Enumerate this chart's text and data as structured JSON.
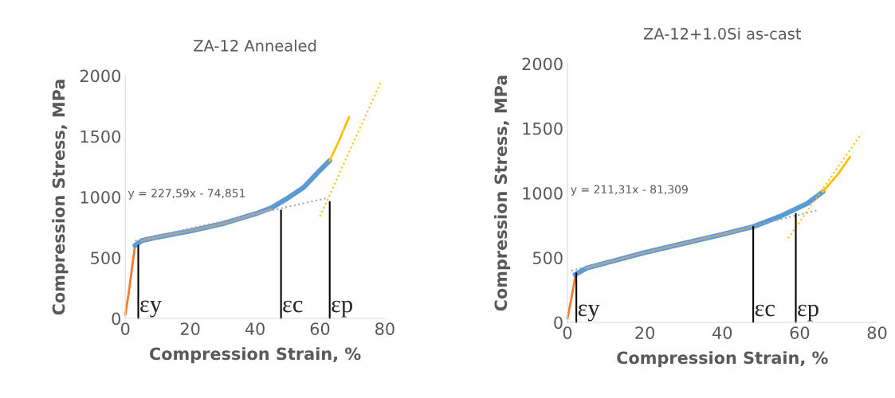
{
  "chart_data": [
    {
      "type": "line",
      "title": "ZA-12 Annealed",
      "xlabel": "Compression Strain, %",
      "ylabel": "Compression Stress, MPa",
      "xlim": [
        0,
        80
      ],
      "ylim": [
        0,
        2000
      ],
      "xticks": [
        0,
        20,
        40,
        60,
        80
      ],
      "yticks": [
        0,
        500,
        1000,
        1500,
        2000
      ],
      "grid": false,
      "legend": false,
      "series": [
        {
          "color": "#ed7d31",
          "x": [
            0,
            1,
            2,
            3
          ],
          "values": [
            30,
            200,
            400,
            600
          ]
        },
        {
          "color": "#5b9bd5",
          "x": [
            3,
            5,
            10,
            20,
            30,
            40,
            45,
            50,
            55,
            60,
            63
          ],
          "values": [
            600,
            640,
            670,
            720,
            780,
            860,
            910,
            990,
            1080,
            1220,
            1300
          ]
        },
        {
          "color": "#a5a5a5",
          "x": [
            5,
            10,
            20,
            30,
            40,
            45
          ],
          "values": [
            640,
            670,
            720,
            780,
            860,
            900
          ]
        },
        {
          "color": "#a5a5a5",
          "line_style": "dotted",
          "x": [
            3,
            62
          ],
          "values": [
            640,
            990
          ]
        },
        {
          "color": "#ffc000",
          "x": [
            63,
            66,
            69
          ],
          "values": [
            1300,
            1470,
            1660
          ]
        },
        {
          "color": "#ffc000",
          "line_style": "dotted",
          "x": [
            60,
            79
          ],
          "values": [
            840,
            1960
          ]
        },
        {
          "color": "#000000",
          "x": [
            4,
            4
          ],
          "values": [
            0,
            600
          ]
        },
        {
          "color": "#000000",
          "x": [
            48,
            48
          ],
          "values": [
            0,
            890
          ]
        },
        {
          "color": "#000000",
          "x": [
            63,
            63
          ],
          "values": [
            0,
            960
          ]
        }
      ],
      "annotations": [
        "y = 227,59x - 74,851",
        {
          "text": "εy",
          "x": 4,
          "y": 0
        },
        {
          "text": "εc",
          "x": 48,
          "y": 0
        },
        {
          "text": "εp",
          "x": 63,
          "y": 0
        }
      ]
    },
    {
      "type": "line",
      "title": "ZA-12+1.0Si as-cast",
      "xlabel": "Compression Strain, %",
      "ylabel": "Compression Stress, MPa",
      "xlim": [
        0,
        80
      ],
      "ylim": [
        0,
        2000
      ],
      "xticks": [
        0,
        20,
        40,
        60,
        80
      ],
      "yticks": [
        0,
        500,
        1000,
        1500,
        2000
      ],
      "grid": false,
      "legend": false,
      "series": [
        {
          "color": "#ed7d31",
          "x": [
            0,
            1,
            2
          ],
          "values": [
            30,
            180,
            350
          ]
        },
        {
          "color": "#5b9bd5",
          "x": [
            2,
            5,
            10,
            20,
            30,
            40,
            48,
            55,
            62,
            66
          ],
          "values": [
            370,
            420,
            460,
            540,
            610,
            680,
            740,
            820,
            920,
            1010
          ]
        },
        {
          "color": "#a5a5a5",
          "x": [
            5,
            10,
            20,
            30,
            40,
            48
          ],
          "values": [
            420,
            460,
            540,
            610,
            680,
            740
          ]
        },
        {
          "color": "#a5a5a5",
          "line_style": "dotted",
          "x": [
            1,
            65
          ],
          "values": [
            400,
            870
          ]
        },
        {
          "color": "#ffc000",
          "x": [
            66,
            70,
            73
          ],
          "values": [
            1010,
            1150,
            1280
          ]
        },
        {
          "color": "#ffc000",
          "line_style": "dotted",
          "x": [
            57,
            76
          ],
          "values": [
            650,
            1460
          ]
        },
        {
          "color": "#000000",
          "x": [
            2.3,
            2.3
          ],
          "values": [
            0,
            380
          ]
        },
        {
          "color": "#000000",
          "x": [
            48,
            48
          ],
          "values": [
            0,
            740
          ]
        },
        {
          "color": "#000000",
          "x": [
            59,
            59
          ],
          "values": [
            0,
            840
          ]
        }
      ],
      "annotations": [
        "y = 211,31x - 81,309",
        {
          "text": "εy",
          "x": 2.3,
          "y": 0
        },
        {
          "text": "εc",
          "x": 48,
          "y": 0
        },
        {
          "text": "εp",
          "x": 59,
          "y": 0
        }
      ]
    }
  ]
}
